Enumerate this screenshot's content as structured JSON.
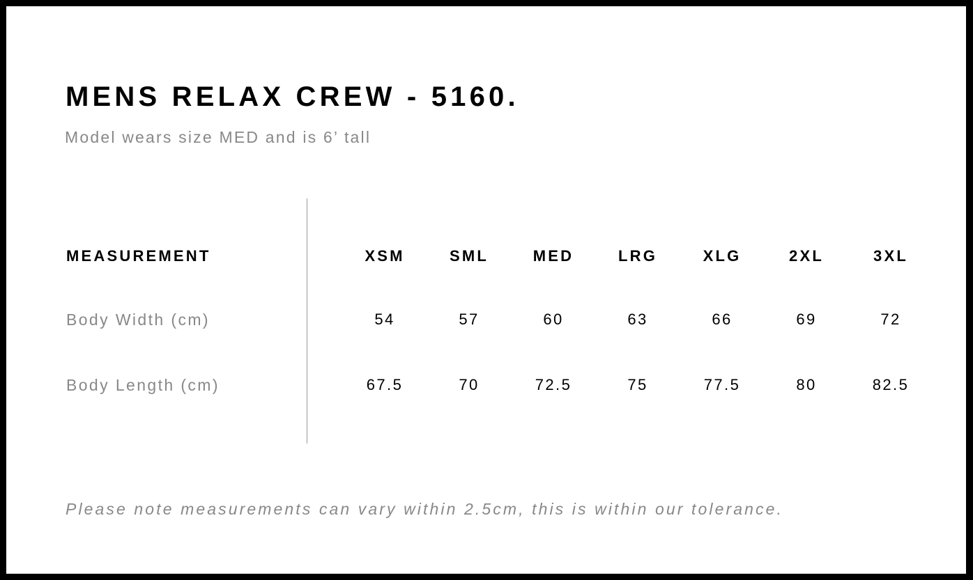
{
  "title": "MENS RELAX CREW - 5160.",
  "subtitle": "Model wears size MED and is 6’ tall",
  "table": {
    "header": "MEASUREMENT",
    "sizes": [
      "XSM",
      "SML",
      "MED",
      "LRG",
      "XLG",
      "2XL",
      "3XL"
    ],
    "rows": [
      {
        "label": "Body Width (cm)",
        "values": [
          "54",
          "57",
          "60",
          "63",
          "66",
          "69",
          "72"
        ]
      },
      {
        "label": "Body Length (cm)",
        "values": [
          "67.5",
          "70",
          "72.5",
          "75",
          "77.5",
          "80",
          "82.5"
        ]
      }
    ]
  },
  "note": "Please note measurements can vary within 2.5cm, this is within our tolerance."
}
